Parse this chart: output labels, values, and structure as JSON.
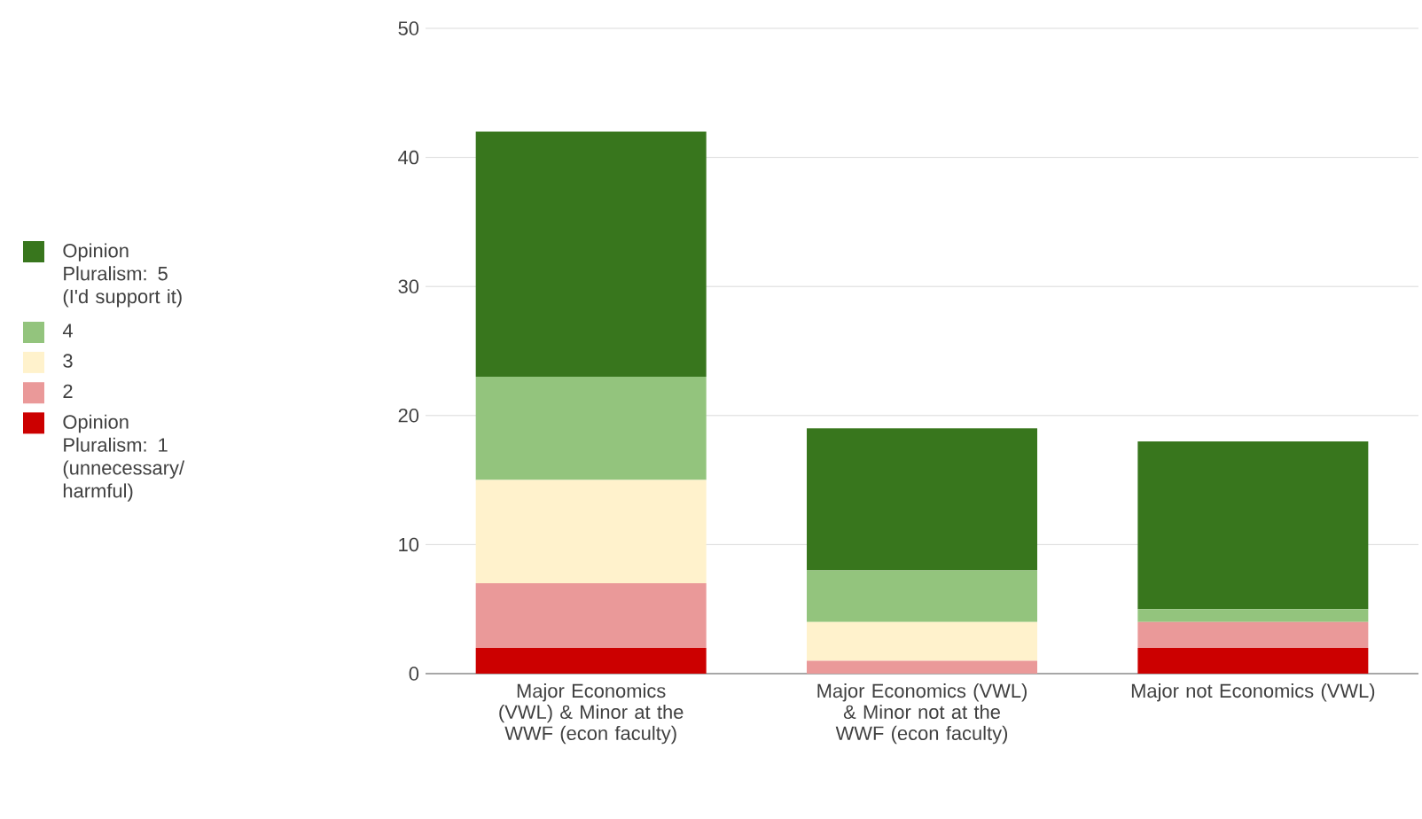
{
  "chart_data": {
    "type": "bar",
    "stacked": true,
    "categories": [
      "Major Economics (VWL) & Minor at the WWF (econ faculty)",
      "Major Economics (VWL) & Minor not at the WWF (econ faculty)",
      "Major not Economics (VWL)"
    ],
    "series": [
      {
        "name": "Opinion Pluralism: 1 (unnecessary/ harmful)",
        "color": "#cc0000",
        "values": [
          2,
          0,
          2
        ]
      },
      {
        "name": "2",
        "color": "#ea9999",
        "values": [
          5,
          1,
          2
        ]
      },
      {
        "name": "3",
        "color": "#fff2cc",
        "values": [
          8,
          3,
          0
        ]
      },
      {
        "name": "4",
        "color": "#93c47d",
        "values": [
          8,
          4,
          1
        ]
      },
      {
        "name": "Opinion Pluralism: 5 (I'd support it)",
        "color": "#38761d",
        "values": [
          19,
          11,
          13
        ]
      }
    ],
    "ylim": [
      0,
      50
    ],
    "yticks": [
      0,
      10,
      20,
      30,
      40,
      50
    ],
    "grid": "y",
    "legend": "left"
  }
}
